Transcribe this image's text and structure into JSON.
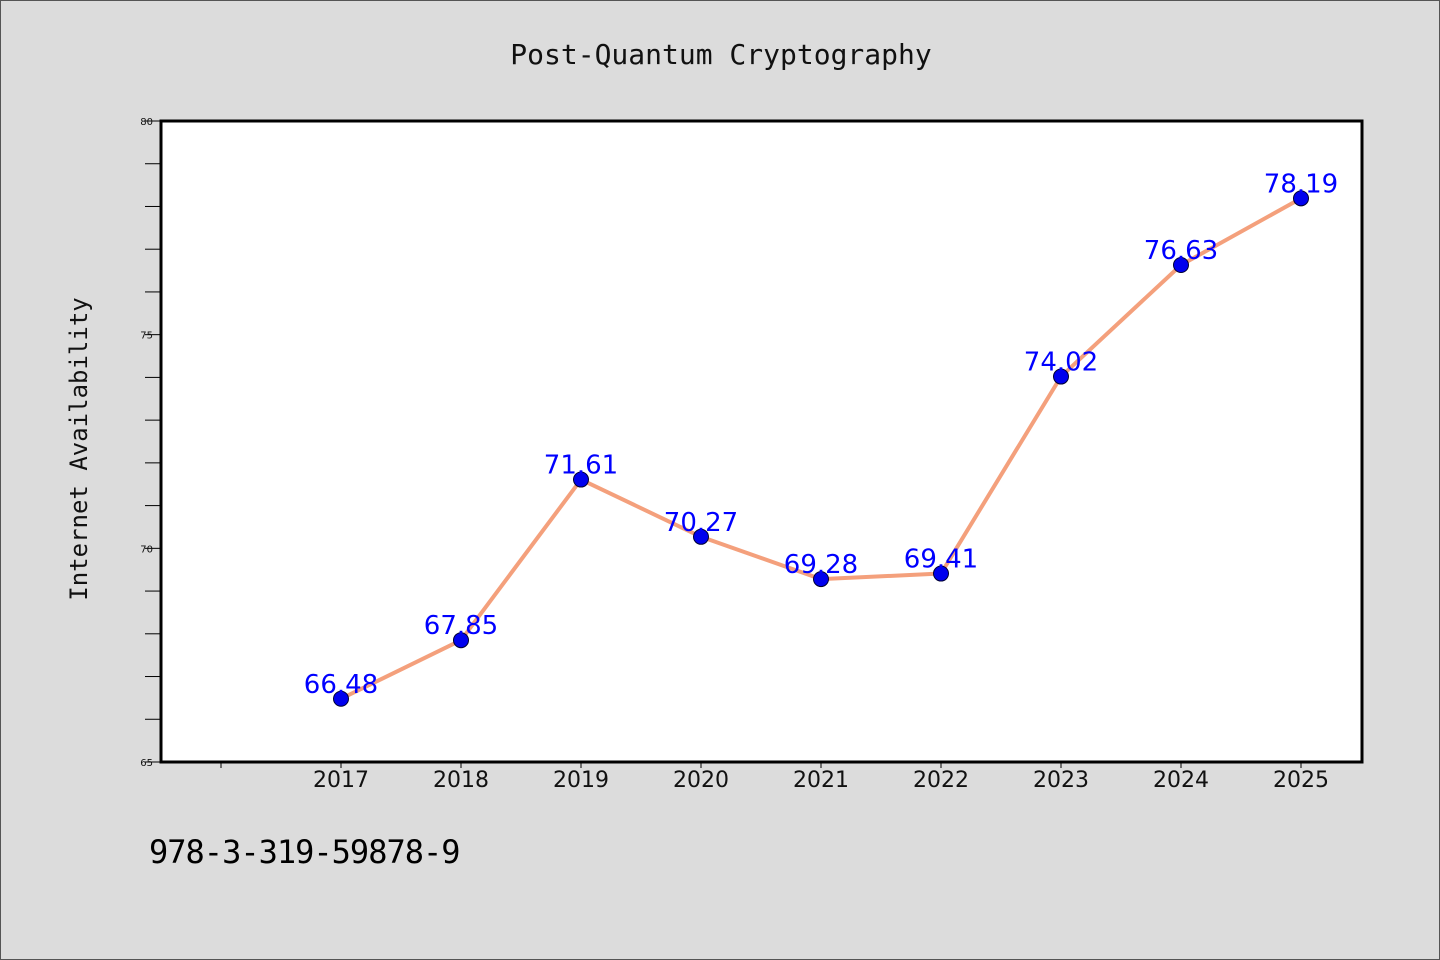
{
  "chart_data": {
    "type": "line",
    "title": "Post-Quantum Cryptography",
    "ylabel": "Internet Availability",
    "xlabel": "",
    "x": [
      "2017",
      "2018",
      "2019",
      "2020",
      "2021",
      "2022",
      "2023",
      "2024",
      "2025"
    ],
    "series": [
      {
        "values": [
          66.48,
          67.85,
          71.61,
          70.27,
          69.28,
          69.41,
          74.02,
          76.63,
          78.19
        ],
        "labels": [
          "66.48",
          "67.85",
          "71.61",
          "70.27",
          "69.28",
          "69.41",
          "74.02",
          "76.63",
          "78.19"
        ]
      }
    ],
    "ylim": [
      65,
      80
    ],
    "yticks": [
      "65",
      "70",
      "75",
      "80"
    ],
    "grid": false,
    "colors": {
      "line": "#f4a07c",
      "marker": "#0000ee",
      "label": "#0000ff",
      "background": "#dcdcdc",
      "plot_bg": "#ffffff"
    }
  },
  "footer": {
    "code": "978-3-319-59878-9"
  }
}
